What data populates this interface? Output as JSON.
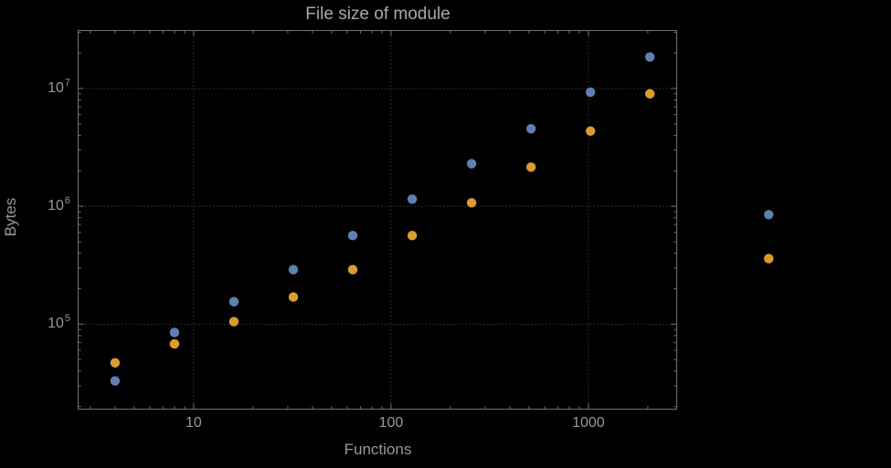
{
  "page": {
    "background": "#000000"
  },
  "chart_data": {
    "type": "scatter",
    "title": "File size of module",
    "xlabel": "Functions",
    "ylabel": "Bytes",
    "x_scale": "log",
    "y_scale": "log",
    "grid": "dotted-major",
    "legend": "none",
    "x_range": [
      2.6,
      2800
    ],
    "y_range": [
      19000,
      31000000
    ],
    "x_ticks": [
      {
        "label": "10",
        "value": 10
      },
      {
        "label": "100",
        "value": 100
      },
      {
        "label": "1000",
        "value": 1000
      }
    ],
    "y_ticks": [
      {
        "mantissa": "10",
        "exponent": "5",
        "value": 100000
      },
      {
        "mantissa": "10",
        "exponent": "6",
        "value": 1000000
      },
      {
        "mantissa": "10",
        "exponent": "7",
        "value": 10000000
      }
    ],
    "x": [
      4,
      8,
      16,
      32,
      64,
      128,
      256,
      512,
      1024,
      2048,
      8192
    ],
    "series": [
      {
        "name": "blue",
        "color": "#5E81B5",
        "values": [
          33000,
          85000,
          155000,
          290000,
          565000,
          1150000,
          2300000,
          4550000,
          9300000,
          18500000,
          850000
        ]
      },
      {
        "name": "orange",
        "color": "#E19C24",
        "values": [
          47000,
          68000,
          105000,
          170000,
          290000,
          565000,
          1070000,
          2150000,
          4350000,
          9000000,
          360000
        ]
      }
    ],
    "colors": {
      "frame": "#717171",
      "grid": "#565656",
      "text": "#989898",
      "title": "#a8a8a8"
    }
  }
}
